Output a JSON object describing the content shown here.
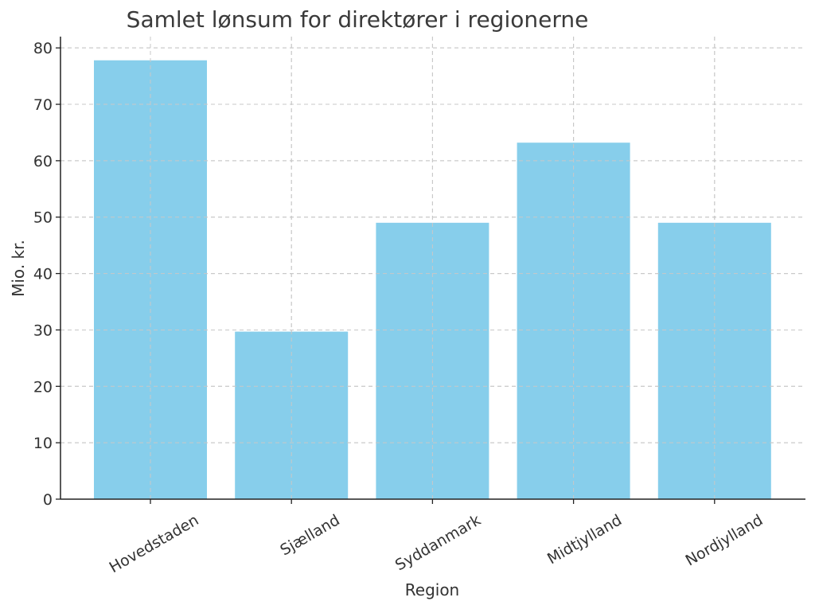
{
  "chart_data": {
    "type": "bar",
    "title": "Samlet lønsum for direktører i regionerne",
    "xlabel": "Region",
    "ylabel": "Mio. kr.",
    "categories": [
      "Hovedstaden",
      "Sjælland",
      "Syddanmark",
      "Midtjylland",
      "Nordjylland"
    ],
    "values": [
      77.8,
      29.7,
      49.0,
      63.2,
      49.0
    ],
    "ylim": [
      0,
      82
    ],
    "yticks": [
      0,
      10,
      20,
      30,
      40,
      50,
      60,
      70,
      80
    ],
    "grid": true,
    "bar_color": "#87CEEB"
  }
}
